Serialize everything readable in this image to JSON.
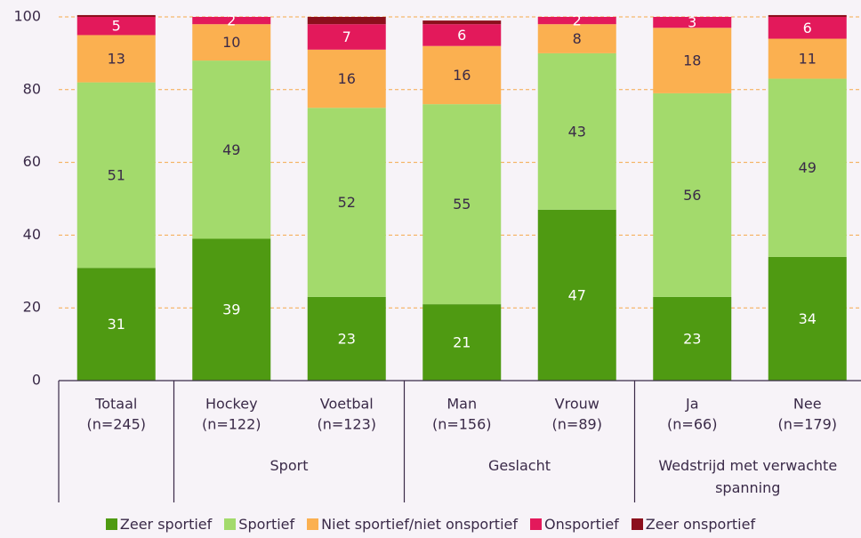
{
  "chart_data": {
    "type": "stacked_bar",
    "categories": [
      "Totaal",
      "Hockey",
      "Voetbal",
      "Man",
      "Vrouw",
      "Ja",
      "Nee"
    ],
    "category_counts": [
      "(n=245)",
      "(n=122)",
      "(n=123)",
      "(n=156)",
      "(n=89)",
      "(n=66)",
      "(n=179)"
    ],
    "groups": [
      null,
      "Sport",
      "Sport",
      "Geslacht",
      "Geslacht",
      "Wedstrijd met verwachte spanning",
      "Wedstrijd met verwachte spanning"
    ],
    "series": [
      {
        "name": "Zeer sportief",
        "color": "#4f9a12",
        "label_color": "#ffffff",
        "show_labels": true,
        "values": [
          31,
          39,
          23,
          21,
          47,
          23,
          34
        ]
      },
      {
        "name": "Sportief",
        "color": "#a3da6c",
        "label_color": "#3a2a48",
        "show_labels": true,
        "values": [
          51,
          49,
          52,
          55,
          43,
          56,
          49
        ]
      },
      {
        "name": "Niet sportief/niet onsportief",
        "color": "#fbb050",
        "label_color": "#3a2a48",
        "show_labels": true,
        "values": [
          13,
          10,
          16,
          16,
          8,
          18,
          11
        ]
      },
      {
        "name": "Onsportief",
        "color": "#e3195b",
        "label_color": "#ffffff",
        "show_labels": true,
        "values": [
          5,
          2,
          7,
          6,
          2,
          3,
          6
        ]
      },
      {
        "name": "Zeer onsportief",
        "color": "#8c0f1c",
        "label_color": "#ffffff",
        "show_labels": false,
        "values": [
          0.5,
          0,
          2,
          1,
          0,
          0,
          0.5
        ]
      }
    ],
    "ylim": [
      0,
      100
    ],
    "yticks": [
      0,
      20,
      40,
      60,
      80,
      100
    ],
    "grid": true
  }
}
